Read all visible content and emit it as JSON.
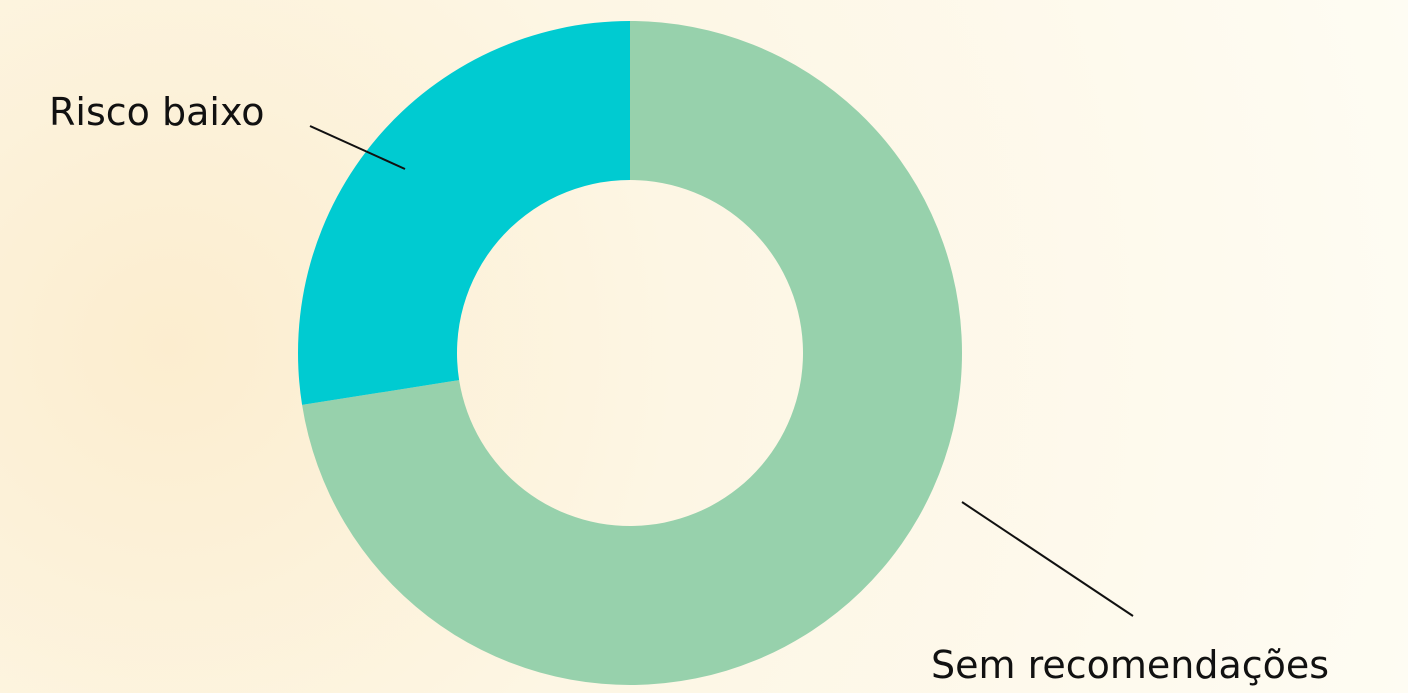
{
  "chart_data": {
    "type": "pie",
    "variant": "donut",
    "slices": [
      {
        "label": "Sem recomendações",
        "value": 72.5,
        "color": "#97d1ac"
      },
      {
        "label": "Risco baixo",
        "value": 27.5,
        "color": "#00cbd1"
      }
    ],
    "legend": "none"
  }
}
